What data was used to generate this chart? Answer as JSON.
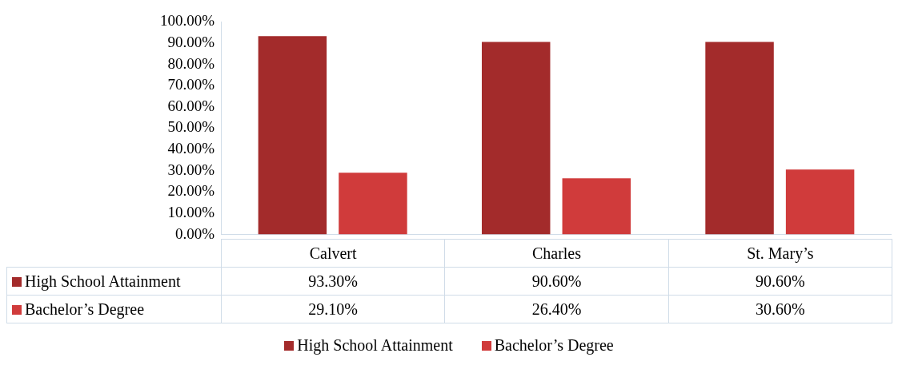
{
  "chart_data": {
    "type": "bar",
    "categories": [
      "Calvert",
      "Charles",
      "St. Mary’s"
    ],
    "series": [
      {
        "name": "High School Attainment",
        "color": "#a32b2b",
        "values": [
          93.3,
          90.6,
          90.6
        ],
        "value_labels": [
          "93.30%",
          "90.60%",
          "90.60%"
        ]
      },
      {
        "name": "Bachelor’s Degree",
        "color": "#d03b3b",
        "values": [
          29.1,
          26.4,
          30.6
        ],
        "value_labels": [
          "29.10%",
          "26.40%",
          "30.60%"
        ]
      }
    ],
    "ylim": [
      0,
      100
    ],
    "yticks": [
      {
        "value": 0,
        "label": "0.00%"
      },
      {
        "value": 10,
        "label": "10.00%"
      },
      {
        "value": 20,
        "label": "20.00%"
      },
      {
        "value": 30,
        "label": "30.00%"
      },
      {
        "value": 40,
        "label": "40.00%"
      },
      {
        "value": 50,
        "label": "50.00%"
      },
      {
        "value": 60,
        "label": "60.00%"
      },
      {
        "value": 70,
        "label": "70.00%"
      },
      {
        "value": 80,
        "label": "80.00%"
      },
      {
        "value": 90,
        "label": "90.00%"
      },
      {
        "value": 100,
        "label": "100.00%"
      }
    ],
    "grid": false,
    "legend": "bottom"
  }
}
